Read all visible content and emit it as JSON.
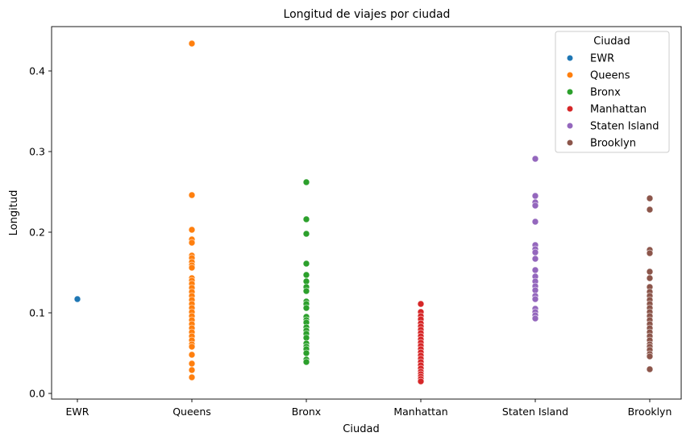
{
  "chart_data": {
    "type": "scatter",
    "title": "Longitud de viajes por ciudad",
    "xlabel": "Ciudad",
    "ylabel": "Longitud",
    "categories": [
      "EWR",
      "Queens",
      "Bronx",
      "Manhattan",
      "Staten Island",
      "Brooklyn"
    ],
    "y_ticks": [
      "0.0",
      "0.1",
      "0.2",
      "0.3",
      "0.4"
    ],
    "ylim": [
      -0.007,
      0.455
    ],
    "grid": false,
    "legend": {
      "title": "Ciudad",
      "position": "top-right"
    },
    "series": [
      {
        "name": "EWR",
        "color": "#1f77b4",
        "values": [
          0.117
        ]
      },
      {
        "name": "Queens",
        "color": "#ff7f0e",
        "values": [
          0.434,
          0.246,
          0.203,
          0.191,
          0.187,
          0.171,
          0.168,
          0.163,
          0.159,
          0.156,
          0.143,
          0.14,
          0.136,
          0.131,
          0.126,
          0.121,
          0.116,
          0.111,
          0.106,
          0.101,
          0.096,
          0.091,
          0.086,
          0.081,
          0.076,
          0.071,
          0.066,
          0.061,
          0.058,
          0.048,
          0.037,
          0.029,
          0.02
        ]
      },
      {
        "name": "Bronx",
        "color": "#2ca02c",
        "values": [
          0.262,
          0.216,
          0.198,
          0.161,
          0.147,
          0.139,
          0.132,
          0.127,
          0.114,
          0.111,
          0.106,
          0.095,
          0.091,
          0.088,
          0.082,
          0.078,
          0.074,
          0.069,
          0.062,
          0.058,
          0.055,
          0.05,
          0.042,
          0.039
        ]
      },
      {
        "name": "Manhattan",
        "color": "#d62728",
        "values": [
          0.111,
          0.101,
          0.096,
          0.092,
          0.087,
          0.083,
          0.079,
          0.075,
          0.071,
          0.067,
          0.063,
          0.059,
          0.055,
          0.051,
          0.047,
          0.043,
          0.039,
          0.035,
          0.031,
          0.027,
          0.024,
          0.021,
          0.018,
          0.015
        ]
      },
      {
        "name": "Staten Island",
        "color": "#9467bd",
        "values": [
          0.291,
          0.245,
          0.237,
          0.233,
          0.213,
          0.184,
          0.179,
          0.175,
          0.167,
          0.153,
          0.145,
          0.139,
          0.133,
          0.128,
          0.121,
          0.117,
          0.105,
          0.101,
          0.097,
          0.093
        ]
      },
      {
        "name": "Brooklyn",
        "color": "#8c564b",
        "values": [
          0.242,
          0.228,
          0.178,
          0.174,
          0.151,
          0.143,
          0.132,
          0.126,
          0.121,
          0.116,
          0.111,
          0.106,
          0.101,
          0.096,
          0.091,
          0.086,
          0.081,
          0.076,
          0.071,
          0.066,
          0.061,
          0.058,
          0.054,
          0.049,
          0.046,
          0.03
        ]
      }
    ]
  }
}
